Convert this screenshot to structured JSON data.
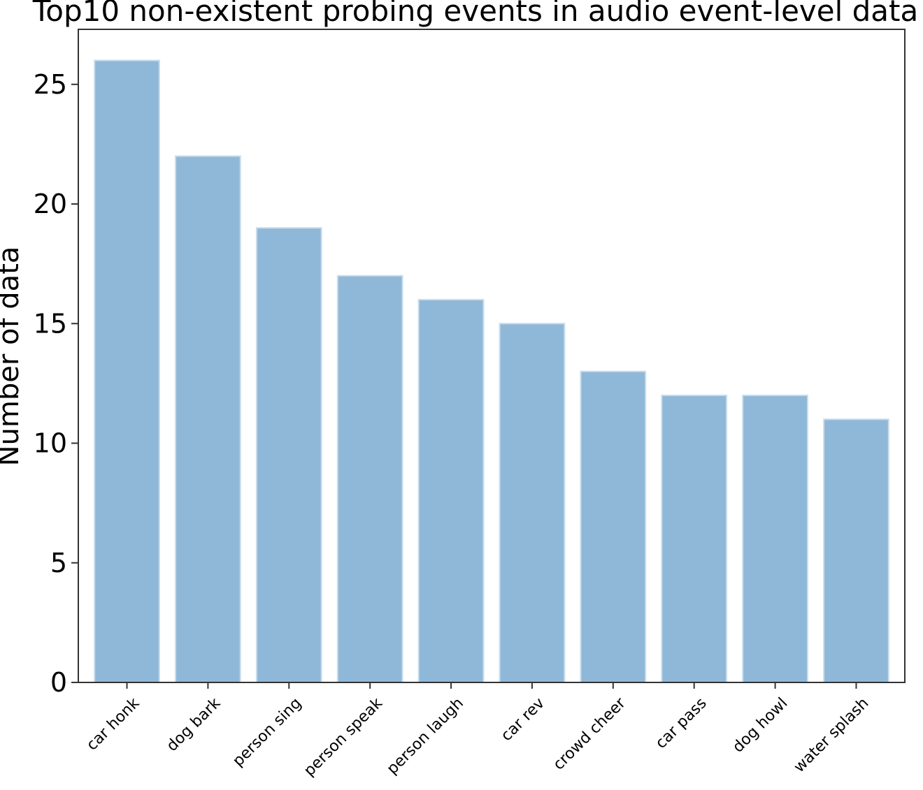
{
  "chart_data": {
    "type": "bar",
    "title": "Top10 non-existent probing events in audio event-level data",
    "xlabel": "",
    "ylabel": "Number of data",
    "categories": [
      "car honk",
      "dog bark",
      "person sing",
      "person speak",
      "person laugh",
      "car rev",
      "crowd cheer",
      "car pass",
      "dog howl",
      "water splash"
    ],
    "values": [
      26,
      22,
      19,
      17,
      16,
      15,
      13,
      12,
      12,
      11
    ],
    "ylim": [
      0,
      27.3
    ],
    "yticks": [
      0,
      5,
      10,
      15,
      20,
      25
    ],
    "grid": false,
    "bar_color": "#8fb8d8",
    "bar_edge_color": "#c8dcec"
  }
}
